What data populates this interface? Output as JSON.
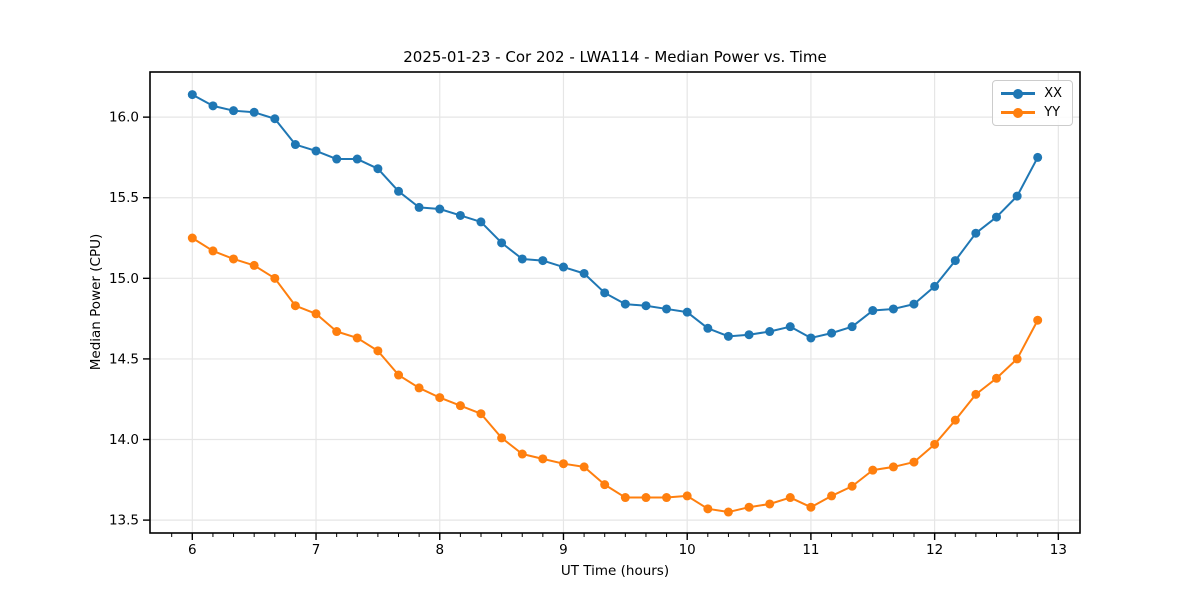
{
  "chart_data": {
    "type": "line",
    "title": "2025-01-23 - Cor 202 - LWA114 - Median Power vs. Time",
    "xlabel": "UT Time (hours)",
    "ylabel": "Median Power (CPU)",
    "xlim": [
      5.658,
      13.175
    ],
    "ylim": [
      13.42,
      16.28
    ],
    "grid": true,
    "grid_color": "#e6e6e6",
    "spine_color": "#000000",
    "legend_position": "upper right",
    "xticks": [
      {
        "value": 6,
        "label": "6"
      },
      {
        "value": 7,
        "label": "7"
      },
      {
        "value": 8,
        "label": "8"
      },
      {
        "value": 9,
        "label": "9"
      },
      {
        "value": 10,
        "label": "10"
      },
      {
        "value": 11,
        "label": "11"
      },
      {
        "value": 12,
        "label": "12"
      },
      {
        "value": 13,
        "label": "13"
      }
    ],
    "yticks": [
      {
        "value": 13.5,
        "label": "13.5"
      },
      {
        "value": 14.0,
        "label": "14.0"
      },
      {
        "value": 14.5,
        "label": "14.5"
      },
      {
        "value": 15.0,
        "label": "15.0"
      },
      {
        "value": 15.5,
        "label": "15.5"
      },
      {
        "value": 16.0,
        "label": "16.0"
      }
    ],
    "x_minor_tick_step": 0.166667,
    "x": [
      6.0,
      6.167,
      6.333,
      6.5,
      6.667,
      6.833,
      7.0,
      7.167,
      7.333,
      7.5,
      7.667,
      7.833,
      8.0,
      8.167,
      8.333,
      8.5,
      8.667,
      8.833,
      9.0,
      9.167,
      9.333,
      9.5,
      9.667,
      9.833,
      10.0,
      10.167,
      10.333,
      10.5,
      10.667,
      10.833,
      11.0,
      11.167,
      11.333,
      11.5,
      11.667,
      11.833,
      12.0,
      12.167,
      12.333,
      12.5,
      12.667,
      12.833
    ],
    "series": [
      {
        "name": "XX",
        "color": "#1f77b4",
        "values": [
          16.14,
          16.07,
          16.04,
          16.03,
          15.99,
          15.83,
          15.79,
          15.74,
          15.74,
          15.68,
          15.54,
          15.44,
          15.43,
          15.39,
          15.35,
          15.22,
          15.12,
          15.11,
          15.07,
          15.03,
          14.91,
          14.84,
          14.83,
          14.81,
          14.79,
          14.69,
          14.64,
          14.65,
          14.67,
          14.7,
          14.63,
          14.66,
          14.7,
          14.8,
          14.81,
          14.84,
          14.95,
          15.11,
          15.28,
          15.38,
          15.51,
          15.75
        ]
      },
      {
        "name": "YY",
        "color": "#ff7f0e",
        "values": [
          15.25,
          15.17,
          15.12,
          15.08,
          15.0,
          14.83,
          14.78,
          14.67,
          14.63,
          14.55,
          14.4,
          14.32,
          14.26,
          14.21,
          14.16,
          14.01,
          13.91,
          13.88,
          13.85,
          13.83,
          13.72,
          13.64,
          13.64,
          13.64,
          13.65,
          13.57,
          13.55,
          13.58,
          13.6,
          13.64,
          13.58,
          13.65,
          13.71,
          13.81,
          13.83,
          13.86,
          13.97,
          14.12,
          14.28,
          14.38,
          14.5,
          14.74
        ]
      }
    ]
  }
}
